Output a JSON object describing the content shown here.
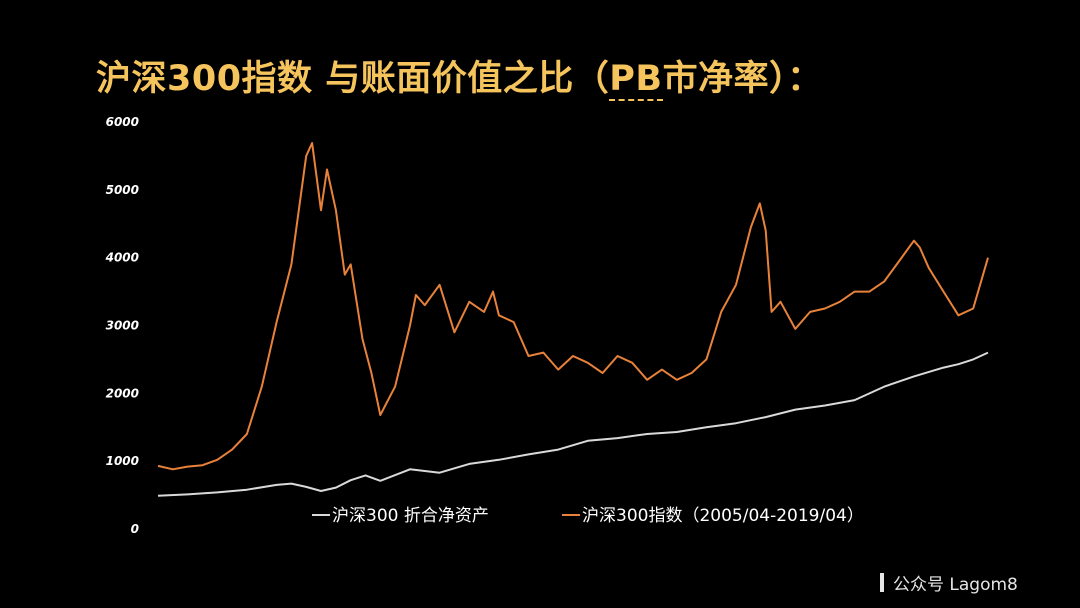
{
  "title": {
    "main": "沪深300指数 与账面价值之比（",
    "pb": "PB",
    "tail": "市净率）："
  },
  "watermark": "公众号 Lagom8",
  "chart_data": {
    "type": "line",
    "y_ticks": [
      "6000",
      "5000",
      "4000",
      "3000",
      "2000",
      "1000",
      "0"
    ],
    "ylim": [
      0,
      6000
    ],
    "x_range": [
      2005.25,
      2019.25
    ],
    "series": [
      {
        "name": "沪深300 折合净资产",
        "color": "#d9d9d9",
        "x": [
          2005.25,
          2005.75,
          2006.25,
          2006.75,
          2007.25,
          2007.5,
          2007.75,
          2008.0,
          2008.25,
          2008.5,
          2008.75,
          2009.0,
          2009.5,
          2010.0,
          2010.5,
          2011.0,
          2011.5,
          2012.0,
          2012.5,
          2013.0,
          2013.5,
          2014.0,
          2014.5,
          2015.0,
          2015.5,
          2016.0,
          2016.5,
          2017.0,
          2017.5,
          2018.0,
          2018.5,
          2018.75,
          2019.0,
          2019.25
        ],
        "y": [
          490,
          510,
          540,
          580,
          650,
          670,
          620,
          560,
          610,
          720,
          790,
          710,
          880,
          830,
          960,
          1020,
          1100,
          1170,
          1300,
          1340,
          1400,
          1430,
          1500,
          1560,
          1650,
          1760,
          1820,
          1900,
          2100,
          2250,
          2380,
          2430,
          2500,
          2600
        ]
      },
      {
        "name": "沪深300指数（2005/04-2019/04）",
        "color": "#e8823a",
        "x": [
          2005.25,
          2005.5,
          2005.75,
          2006.0,
          2006.25,
          2006.5,
          2006.75,
          2007.0,
          2007.25,
          2007.5,
          2007.75,
          2007.85,
          2008.0,
          2008.1,
          2008.25,
          2008.4,
          2008.5,
          2008.7,
          2008.85,
          2009.0,
          2009.25,
          2009.5,
          2009.6,
          2009.75,
          2010.0,
          2010.25,
          2010.5,
          2010.75,
          2010.9,
          2011.0,
          2011.25,
          2011.5,
          2011.75,
          2012.0,
          2012.25,
          2012.5,
          2012.75,
          2013.0,
          2013.25,
          2013.5,
          2013.75,
          2014.0,
          2014.25,
          2014.5,
          2014.75,
          2015.0,
          2015.25,
          2015.4,
          2015.5,
          2015.6,
          2015.75,
          2016.0,
          2016.25,
          2016.5,
          2016.75,
          2017.0,
          2017.25,
          2017.5,
          2017.75,
          2018.0,
          2018.1,
          2018.25,
          2018.5,
          2018.75,
          2019.0,
          2019.25
        ],
        "y": [
          930,
          880,
          920,
          940,
          1020,
          1170,
          1400,
          2100,
          3050,
          3900,
          5500,
          5690,
          4700,
          5300,
          4700,
          3750,
          3900,
          2800,
          2300,
          1680,
          2100,
          3000,
          3450,
          3300,
          3600,
          2900,
          3350,
          3200,
          3500,
          3150,
          3050,
          2550,
          2600,
          2350,
          2550,
          2450,
          2300,
          2550,
          2450,
          2200,
          2350,
          2200,
          2300,
          2500,
          3200,
          3600,
          4450,
          4800,
          4400,
          3200,
          3350,
          2950,
          3200,
          3250,
          3350,
          3500,
          3500,
          3650,
          3950,
          4250,
          4150,
          3850,
          3500,
          3150,
          3250,
          4000
        ]
      }
    ]
  }
}
